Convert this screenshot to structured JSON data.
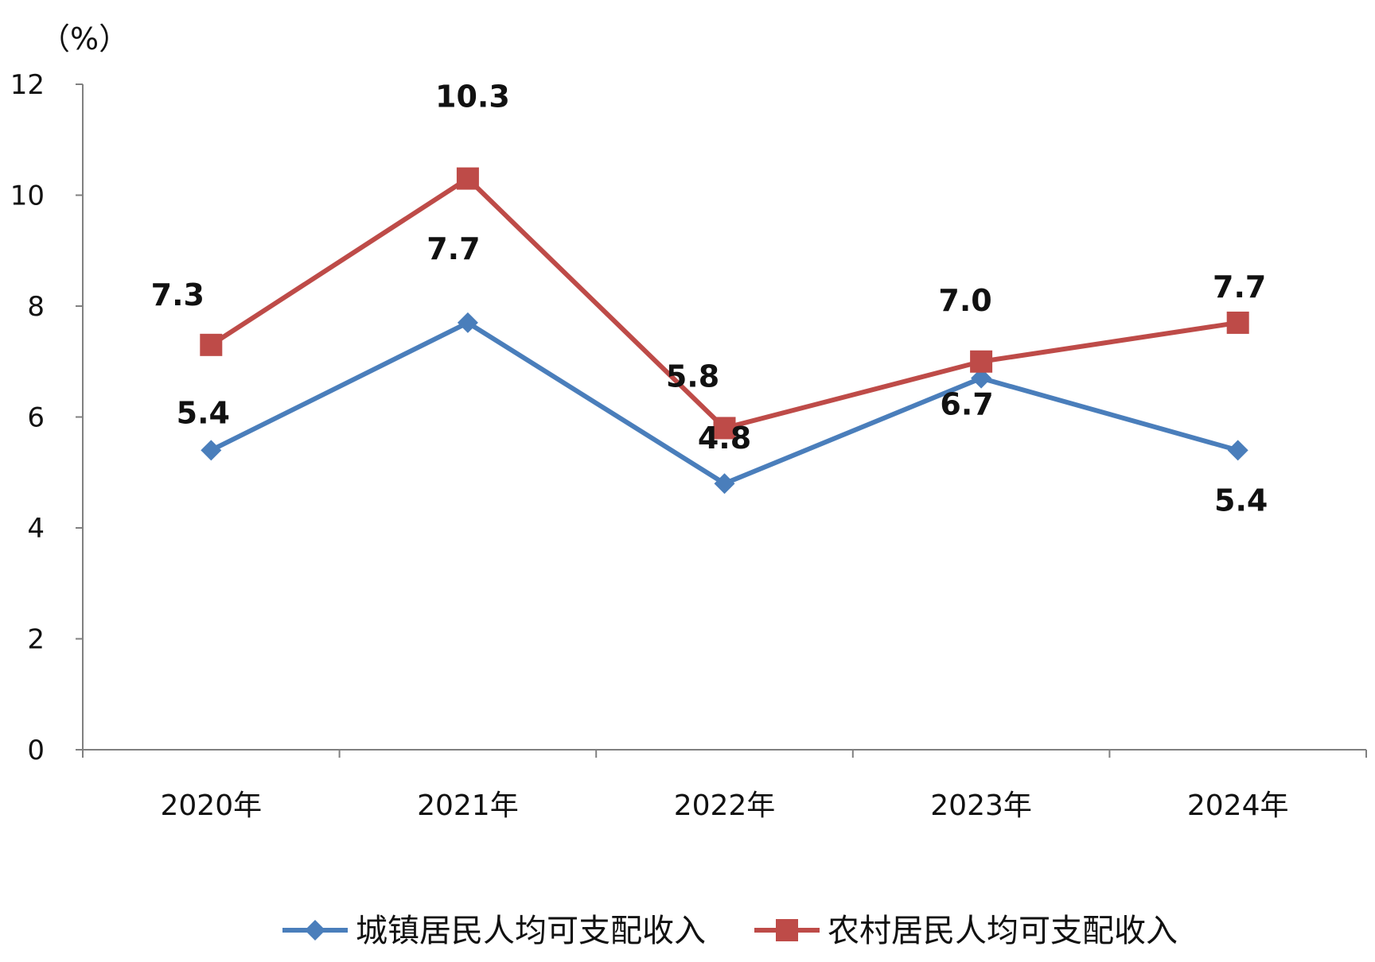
{
  "chart_data": {
    "type": "line",
    "unit_label": "（%）",
    "categories": [
      "2020年",
      "2021年",
      "2022年",
      "2023年",
      "2024年"
    ],
    "ylim": [
      0,
      12
    ],
    "yticks": [
      "0",
      "2",
      "4",
      "6",
      "8",
      "10",
      "12"
    ],
    "grid": false,
    "legend_position": "bottom",
    "series": [
      {
        "name": "城镇居民人均可支配收入",
        "values": [
          5.4,
          7.7,
          4.8,
          6.7,
          5.4
        ],
        "labels": [
          "5.4",
          "7.7",
          "4.8",
          "6.7",
          "5.4"
        ],
        "color": "#4a7ebb",
        "marker": "diamond"
      },
      {
        "name": "农村居民人均可支配收入",
        "values": [
          7.3,
          10.3,
          5.8,
          7.0,
          7.7
        ],
        "labels": [
          "7.3",
          "10.3",
          "5.8",
          "7.0",
          "7.7"
        ],
        "color": "#be4b48",
        "marker": "square"
      }
    ]
  }
}
